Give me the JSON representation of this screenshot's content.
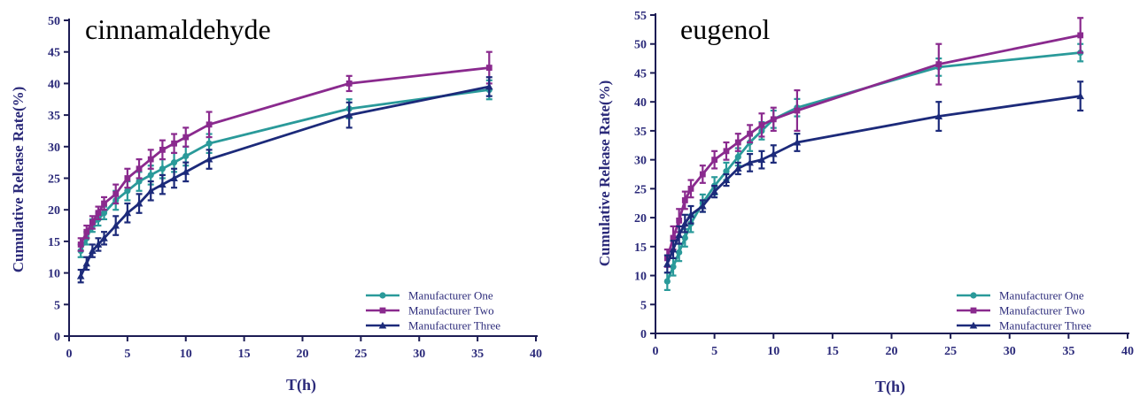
{
  "chart_data": [
    {
      "type": "line",
      "title": "cinnamaldehyde",
      "xlabel": "T(h)",
      "ylabel": "Cumulative Release Rate(%)",
      "xlim": [
        0,
        40
      ],
      "ylim": [
        0,
        50
      ],
      "x_ticks": [
        0,
        5,
        10,
        15,
        20,
        25,
        30,
        35,
        40
      ],
      "y_ticks": [
        0,
        5,
        10,
        15,
        20,
        25,
        30,
        35,
        40,
        45,
        50
      ],
      "legend_position": "bottom-right",
      "grid": false,
      "x": [
        1,
        1.5,
        2,
        2.5,
        3,
        4,
        5,
        6,
        7,
        8,
        9,
        10,
        12,
        24,
        36
      ],
      "series": [
        {
          "name": "Manufacturer One",
          "color": "#2a9a9a",
          "marker": "circle",
          "values": [
            13.5,
            15.5,
            17.5,
            18.5,
            19.5,
            21.5,
            23,
            24.5,
            25.5,
            26.5,
            27.5,
            28.5,
            30.5,
            36,
            39
          ],
          "errors": [
            1,
            1,
            1,
            1,
            1,
            1.5,
            1.5,
            1.5,
            1.5,
            1.5,
            1.5,
            1.5,
            1.5,
            1.5,
            1.5
          ]
        },
        {
          "name": "Manufacturer Two",
          "color": "#8a2a8e",
          "marker": "square",
          "values": [
            14.5,
            16.5,
            18,
            19.5,
            21,
            22.5,
            25,
            26.5,
            28,
            29.5,
            30.5,
            31.5,
            33.5,
            40,
            42.5
          ],
          "errors": [
            1,
            1,
            1,
            1,
            1,
            1.5,
            1.5,
            1.5,
            1.5,
            1.5,
            1.5,
            1.5,
            2,
            1.2,
            2.5
          ]
        },
        {
          "name": "Manufacturer Three",
          "color": "#1c2a7a",
          "marker": "triangle",
          "values": [
            9.5,
            11.5,
            13.5,
            14.5,
            15.5,
            17.5,
            19.5,
            21,
            23,
            24,
            25,
            26,
            28,
            35,
            39.5
          ],
          "errors": [
            1,
            1,
            1,
            1,
            1,
            1.5,
            1.5,
            1.5,
            1.5,
            1.5,
            1.5,
            1.5,
            1.5,
            2,
            1.5
          ]
        }
      ]
    },
    {
      "type": "line",
      "title": "eugenol",
      "xlabel": "T(h)",
      "ylabel": "Cumulative Release Rate(%)",
      "xlim": [
        0,
        40
      ],
      "ylim": [
        0,
        55
      ],
      "x_ticks": [
        0,
        5,
        10,
        15,
        20,
        25,
        30,
        35,
        40
      ],
      "y_ticks": [
        0,
        5,
        10,
        15,
        20,
        25,
        30,
        35,
        40,
        45,
        50,
        55
      ],
      "legend_position": "bottom-right",
      "grid": false,
      "x": [
        1,
        1.5,
        2,
        2.5,
        3,
        4,
        5,
        6,
        7,
        8,
        9,
        10,
        12,
        24,
        36
      ],
      "series": [
        {
          "name": "Manufacturer One",
          "color": "#2a9a9a",
          "marker": "circle",
          "values": [
            9,
            11.5,
            14,
            16.5,
            19,
            22.5,
            25.5,
            28,
            30.5,
            33,
            35,
            37,
            39,
            46,
            48.5
          ],
          "errors": [
            1.5,
            1.5,
            1.5,
            1.5,
            1.5,
            1.5,
            1.5,
            1.5,
            1.5,
            1.5,
            1.5,
            1.5,
            1.5,
            1.5,
            1.5
          ]
        },
        {
          "name": "Manufacturer Two",
          "color": "#8a2a8e",
          "marker": "square",
          "values": [
            13,
            16.5,
            19.5,
            23,
            25,
            27.5,
            30,
            31.5,
            33,
            34.5,
            36,
            37,
            38.5,
            46.5,
            51.5
          ],
          "errors": [
            1.5,
            2,
            2,
            1.5,
            1.5,
            1.5,
            1.5,
            1.5,
            1.5,
            1.5,
            2,
            2,
            3.5,
            3.5,
            3
          ]
        },
        {
          "name": "Manufacturer Three",
          "color": "#1c2a7a",
          "marker": "triangle",
          "values": [
            12,
            14.5,
            17,
            19,
            20.5,
            22,
            24.5,
            26.5,
            28.5,
            29.5,
            30,
            31,
            33,
            37.5,
            41
          ],
          "errors": [
            1.5,
            1.5,
            1.5,
            1.5,
            1.5,
            1,
            1,
            1,
            1,
            1.5,
            1.5,
            1.5,
            1.5,
            2.5,
            2.5
          ]
        }
      ]
    }
  ]
}
